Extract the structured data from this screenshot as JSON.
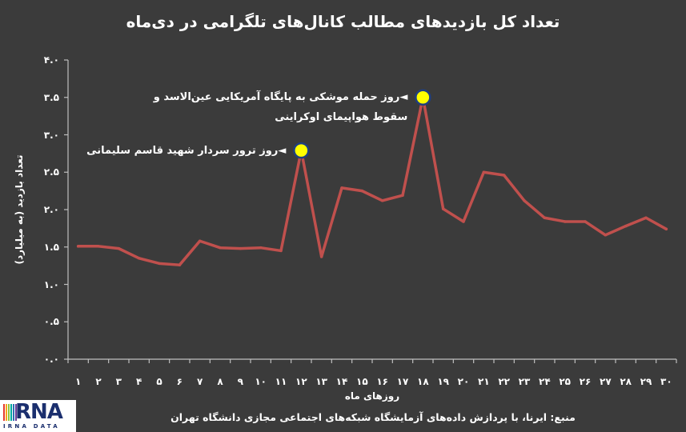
{
  "chart_data": {
    "type": "line",
    "title": "تعداد کل بازدیدهای مطالب کانال‌های تلگرامی در دی‌ماه",
    "xlabel": "روزهای ماه",
    "ylabel": "تعداد بازدید (به میلیارد)",
    "categories": [
      "۱",
      "۲",
      "۳",
      "۴",
      "۵",
      "۶",
      "۷",
      "۸",
      "۹",
      "۱۰",
      "۱۱",
      "۱۲",
      "۱۳",
      "۱۴",
      "۱۵",
      "۱۶",
      "۱۷",
      "۱۸",
      "۱۹",
      "۲۰",
      "۲۱",
      "۲۲",
      "۲۳",
      "۲۴",
      "۲۵",
      "۲۶",
      "۲۷",
      "۲۸",
      "۲۹",
      "۳۰"
    ],
    "series": [
      {
        "values": [
          1.51,
          1.51,
          1.48,
          1.35,
          1.28,
          1.26,
          1.58,
          1.49,
          1.48,
          1.49,
          1.45,
          2.79,
          1.37,
          2.29,
          2.25,
          2.12,
          2.19,
          3.5,
          2.01,
          1.84,
          2.5,
          2.46,
          2.12,
          1.89,
          1.84,
          1.84,
          1.66,
          1.78,
          1.89,
          1.74
        ]
      }
    ],
    "ylim": [
      0,
      4
    ],
    "yticks": [
      {
        "value": 0.0,
        "label": "۰.۰"
      },
      {
        "value": 0.5,
        "label": "۰.۵"
      },
      {
        "value": 1.0,
        "label": "۱.۰"
      },
      {
        "value": 1.5,
        "label": "۱.۵"
      },
      {
        "value": 2.0,
        "label": "۲.۰"
      },
      {
        "value": 2.5,
        "label": "۲.۵"
      },
      {
        "value": 3.0,
        "label": "۳.۰"
      },
      {
        "value": 3.5,
        "label": "۳.۵"
      },
      {
        "value": 4.0,
        "label": "۴.۰"
      }
    ],
    "grid": false,
    "legend": "none",
    "annotations": [
      {
        "x": 12,
        "lines": [
          "◄روز ترور سردار شهید قاسم سلیمانی"
        ]
      },
      {
        "x": 18,
        "lines": [
          "◄روز حمله موشکی به پایگاه آمریکایی عین‌الاسد و",
          "سقوط هواپیمای اوکراینی"
        ]
      }
    ],
    "source": "منبع: ایرنا، با پردازش داده‌های آزمایشگاه شبکه‌های اجتماعی مجازی دانشگاه تهران"
  },
  "logo": {
    "mark": "RNA",
    "subtext": "IRNA DATA",
    "stripe_colors": [
      "#e63a2e",
      "#f7a31c",
      "#8cc63f",
      "#00a99d",
      "#2e6db4",
      "#6a3d9a"
    ]
  },
  "colors": {
    "background": "#3b3b3b",
    "line": "#c0504d",
    "marker_fill": "#ffff00",
    "marker_stroke": "#1f3f7f",
    "axis": "#bfbfbf",
    "text": "#ffffff"
  }
}
